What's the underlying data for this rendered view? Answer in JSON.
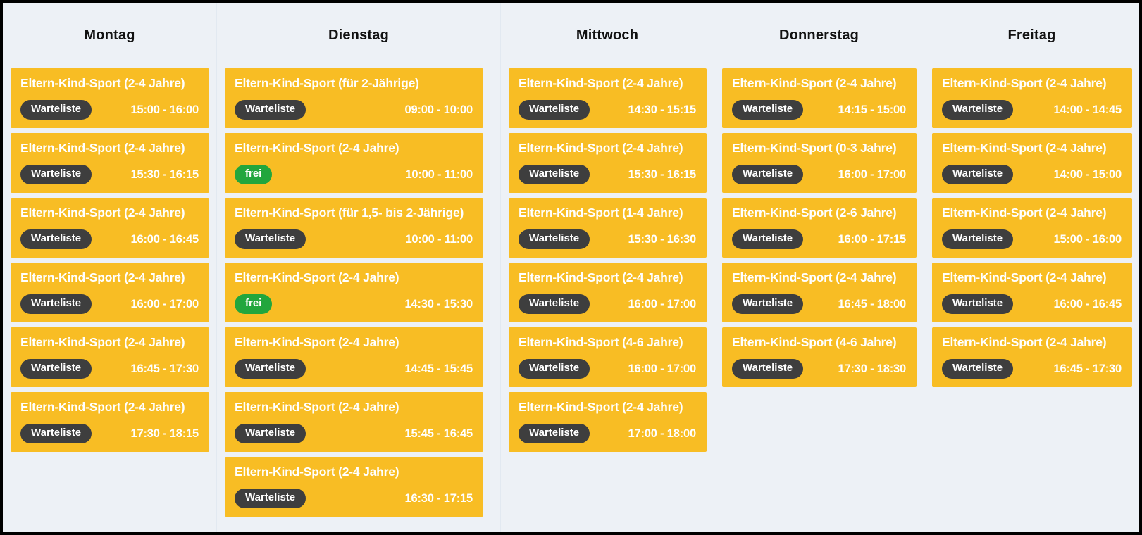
{
  "board": {
    "colors": {
      "card_background": "#f8bd24",
      "waitlist_badge": "#3e3e3e",
      "free_badge": "#22a63d",
      "board_background": "#edf1f6",
      "frame": "#000000",
      "card_text": "#ffffff",
      "header_text": "#121212"
    },
    "days": [
      {
        "label": "Montag",
        "classes": [
          {
            "title": "Eltern-Kind-Sport (2-4 Jahre)",
            "availability": "Warteliste",
            "status": "waitlist",
            "time": "15:00 - 16:00"
          },
          {
            "title": "Eltern-Kind-Sport (2-4 Jahre)",
            "availability": "Warteliste",
            "status": "waitlist",
            "time": "15:30 - 16:15"
          },
          {
            "title": "Eltern-Kind-Sport (2-4 Jahre)",
            "availability": "Warteliste",
            "status": "waitlist",
            "time": "16:00 - 16:45"
          },
          {
            "title": "Eltern-Kind-Sport (2-4 Jahre)",
            "availability": "Warteliste",
            "status": "waitlist",
            "time": "16:00 - 17:00"
          },
          {
            "title": "Eltern-Kind-Sport (2-4 Jahre)",
            "availability": "Warteliste",
            "status": "waitlist",
            "time": "16:45 - 17:30"
          },
          {
            "title": "Eltern-Kind-Sport (2-4 Jahre)",
            "availability": "Warteliste",
            "status": "waitlist",
            "time": "17:30 - 18:15"
          }
        ]
      },
      {
        "label": "Dienstag",
        "classes": [
          {
            "title": "Eltern-Kind-Sport (für 2-Jährige)",
            "availability": "Warteliste",
            "status": "waitlist",
            "time": "09:00 - 10:00"
          },
          {
            "title": "Eltern-Kind-Sport (2-4 Jahre)",
            "availability": "frei",
            "status": "free",
            "time": "10:00 - 11:00"
          },
          {
            "title": "Eltern-Kind-Sport (für 1,5- bis 2-Jährige)",
            "availability": "Warteliste",
            "status": "waitlist",
            "time": "10:00 - 11:00"
          },
          {
            "title": "Eltern-Kind-Sport (2-4 Jahre)",
            "availability": "frei",
            "status": "free",
            "time": "14:30 - 15:30"
          },
          {
            "title": "Eltern-Kind-Sport (2-4 Jahre)",
            "availability": "Warteliste",
            "status": "waitlist",
            "time": "14:45 - 15:45"
          },
          {
            "title": "Eltern-Kind-Sport (2-4 Jahre)",
            "availability": "Warteliste",
            "status": "waitlist",
            "time": "15:45 - 16:45"
          },
          {
            "title": "Eltern-Kind-Sport (2-4 Jahre)",
            "availability": "Warteliste",
            "status": "waitlist",
            "time": "16:30 - 17:15"
          }
        ]
      },
      {
        "label": "Mittwoch",
        "classes": [
          {
            "title": "Eltern-Kind-Sport (2-4 Jahre)",
            "availability": "Warteliste",
            "status": "waitlist",
            "time": "14:30 - 15:15"
          },
          {
            "title": "Eltern-Kind-Sport (2-4 Jahre)",
            "availability": "Warteliste",
            "status": "waitlist",
            "time": "15:30 - 16:15"
          },
          {
            "title": "Eltern-Kind-Sport (1-4 Jahre)",
            "availability": "Warteliste",
            "status": "waitlist",
            "time": "15:30 - 16:30"
          },
          {
            "title": "Eltern-Kind-Sport (2-4 Jahre)",
            "availability": "Warteliste",
            "status": "waitlist",
            "time": "16:00 - 17:00"
          },
          {
            "title": "Eltern-Kind-Sport (4-6 Jahre)",
            "availability": "Warteliste",
            "status": "waitlist",
            "time": "16:00 - 17:00"
          },
          {
            "title": "Eltern-Kind-Sport (2-4 Jahre)",
            "availability": "Warteliste",
            "status": "waitlist",
            "time": "17:00 - 18:00"
          }
        ]
      },
      {
        "label": "Donnerstag",
        "classes": [
          {
            "title": "Eltern-Kind-Sport (2-4 Jahre)",
            "availability": "Warteliste",
            "status": "waitlist",
            "time": "14:15 - 15:00"
          },
          {
            "title": "Eltern-Kind-Sport (0-3 Jahre)",
            "availability": "Warteliste",
            "status": "waitlist",
            "time": "16:00 - 17:00"
          },
          {
            "title": "Eltern-Kind-Sport (2-6 Jahre)",
            "availability": "Warteliste",
            "status": "waitlist",
            "time": "16:00 - 17:15"
          },
          {
            "title": "Eltern-Kind-Sport (2-4 Jahre)",
            "availability": "Warteliste",
            "status": "waitlist",
            "time": "16:45 - 18:00"
          },
          {
            "title": "Eltern-Kind-Sport (4-6 Jahre)",
            "availability": "Warteliste",
            "status": "waitlist",
            "time": "17:30 - 18:30"
          }
        ]
      },
      {
        "label": "Freitag",
        "classes": [
          {
            "title": "Eltern-Kind-Sport (2-4 Jahre)",
            "availability": "Warteliste",
            "status": "waitlist",
            "time": "14:00 - 14:45"
          },
          {
            "title": "Eltern-Kind-Sport (2-4 Jahre)",
            "availability": "Warteliste",
            "status": "waitlist",
            "time": "14:00 - 15:00"
          },
          {
            "title": "Eltern-Kind-Sport (2-4 Jahre)",
            "availability": "Warteliste",
            "status": "waitlist",
            "time": "15:00 - 16:00"
          },
          {
            "title": "Eltern-Kind-Sport (2-4 Jahre)",
            "availability": "Warteliste",
            "status": "waitlist",
            "time": "16:00 - 16:45"
          },
          {
            "title": "Eltern-Kind-Sport (2-4 Jahre)",
            "availability": "Warteliste",
            "status": "waitlist",
            "time": "16:45 - 17:30"
          }
        ]
      }
    ]
  }
}
